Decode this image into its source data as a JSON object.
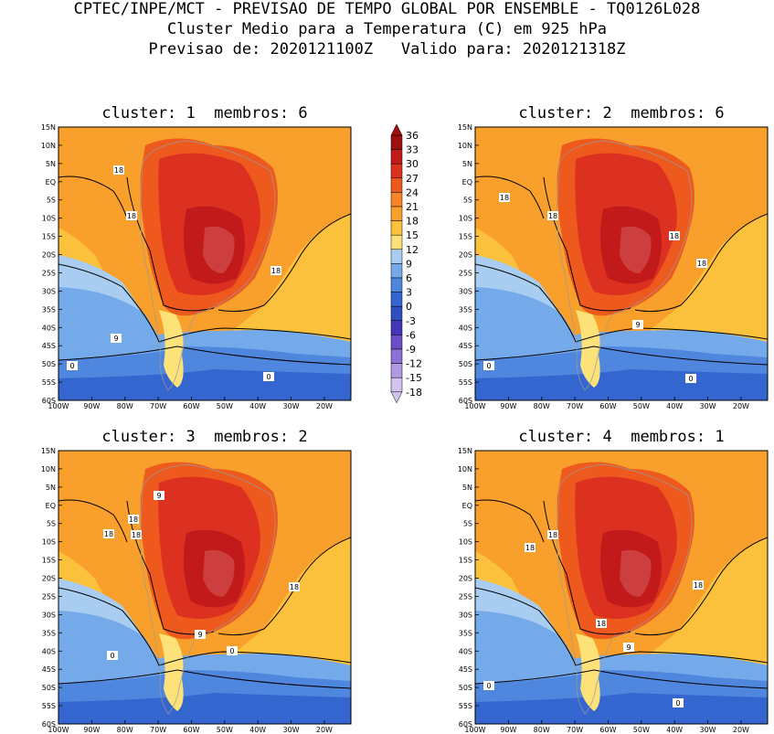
{
  "header": {
    "line1": "CPTEC/INPE/MCT - PREVISAO DE TEMPO GLOBAL POR ENSEMBLE - TQ0126L028",
    "line2": "Cluster Medio para a Temperatura (C) em 925 hPa",
    "line3": "Previsao de: 2020121100Z   Valido para: 2020121318Z"
  },
  "panels": [
    {
      "title": "cluster: 1  membros: 6",
      "contour_labels": [
        [
          "18",
          "18"
        ],
        [
          "18"
        ],
        [
          "9"
        ],
        [
          "0",
          "0"
        ]
      ]
    },
    {
      "title": "cluster: 2  membros: 6",
      "contour_labels": [
        [
          "18",
          "18"
        ],
        [
          "18"
        ],
        [
          "18"
        ],
        [
          "9"
        ],
        [
          "0",
          "0"
        ]
      ]
    },
    {
      "title": "cluster: 3  membros: 2",
      "contour_labels": [
        [
          "18",
          "18"
        ],
        [
          "18"
        ],
        [
          "18"
        ],
        [
          "9",
          "9"
        ],
        [
          "0",
          "0"
        ]
      ]
    },
    {
      "title": "cluster: 4  membros: 1",
      "contour_labels": [
        [
          "18",
          "18"
        ],
        [
          "18"
        ],
        [
          "18"
        ],
        [
          "9"
        ],
        [
          "0",
          "0"
        ]
      ]
    }
  ],
  "lat_ticks": [
    "15N",
    "10N",
    "5N",
    "EQ",
    "5S",
    "10S",
    "15S",
    "20S",
    "25S",
    "30S",
    "35S",
    "40S",
    "45S",
    "50S",
    "55S",
    "60S"
  ],
  "lon_ticks": [
    "100W",
    "90W",
    "80W",
    "70W",
    "60W",
    "50W",
    "40W",
    "30W",
    "20W"
  ],
  "colorbar": {
    "levels": [
      "36",
      "33",
      "30",
      "27",
      "24",
      "21",
      "18",
      "15",
      "12",
      "9",
      "6",
      "3",
      "0",
      "-3",
      "-6",
      "-9",
      "-12",
      "-15",
      "-18"
    ],
    "colors": [
      "#9e1010",
      "#c21a1a",
      "#dc3020",
      "#ee5a1e",
      "#f78428",
      "#f9a02c",
      "#fcc13c",
      "#fde27a",
      "#a8cdf0",
      "#75aaea",
      "#4f86de",
      "#3566d0",
      "#2f4fc0",
      "#4436b8",
      "#6a4fc8",
      "#8c72d6",
      "#b09ae2",
      "#d2c4ee"
    ]
  }
}
